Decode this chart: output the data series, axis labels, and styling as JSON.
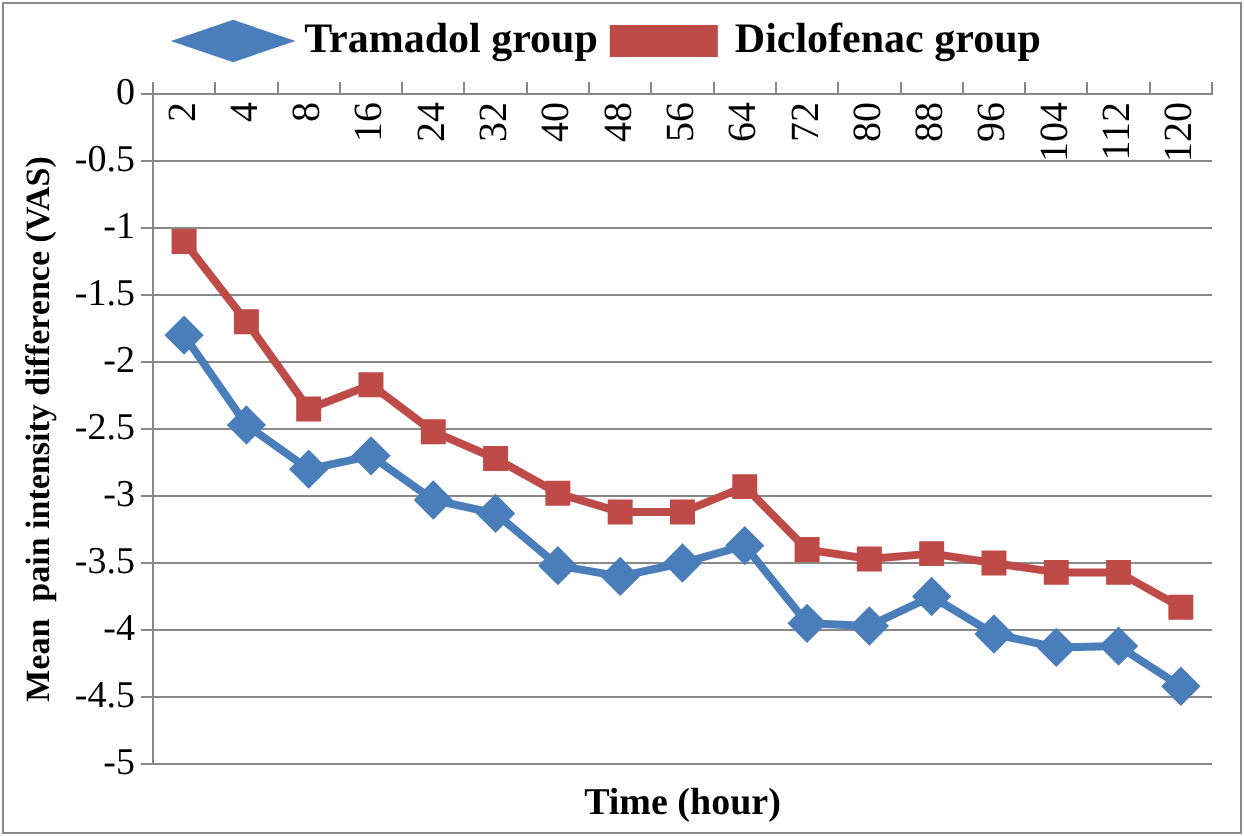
{
  "chart_data": {
    "type": "line",
    "xlabel": "Time (hour)",
    "ylabel": "Mean  pain intensity difference (VAS)",
    "categories": [
      "2",
      "4",
      "8",
      "16",
      "24",
      "32",
      "40",
      "48",
      "56",
      "64",
      "72",
      "80",
      "88",
      "96",
      "104",
      "112",
      "120"
    ],
    "series": [
      {
        "name": "Tramadol group",
        "color": "#4a7ebb",
        "marker": "diamond",
        "values": [
          -1.8,
          -2.47,
          -2.8,
          -2.7,
          -3.03,
          -3.13,
          -3.52,
          -3.6,
          -3.5,
          -3.37,
          -3.95,
          -3.97,
          -3.75,
          -4.03,
          -4.13,
          -4.12,
          -4.42
        ]
      },
      {
        "name": "Diclofenac group",
        "color": "#be4b48",
        "marker": "square",
        "values": [
          -1.1,
          -1.7,
          -2.35,
          -2.17,
          -2.52,
          -2.72,
          -2.98,
          -3.12,
          -3.12,
          -2.93,
          -3.4,
          -3.47,
          -3.43,
          -3.5,
          -3.57,
          -3.57,
          -3.83
        ]
      }
    ],
    "ylim": [
      -5,
      0
    ],
    "yticks": [
      0,
      -0.5,
      -1,
      -1.5,
      -2,
      -2.5,
      -3,
      -3.5,
      -4,
      -4.5,
      -5
    ],
    "grid": "y",
    "legend": "top"
  }
}
